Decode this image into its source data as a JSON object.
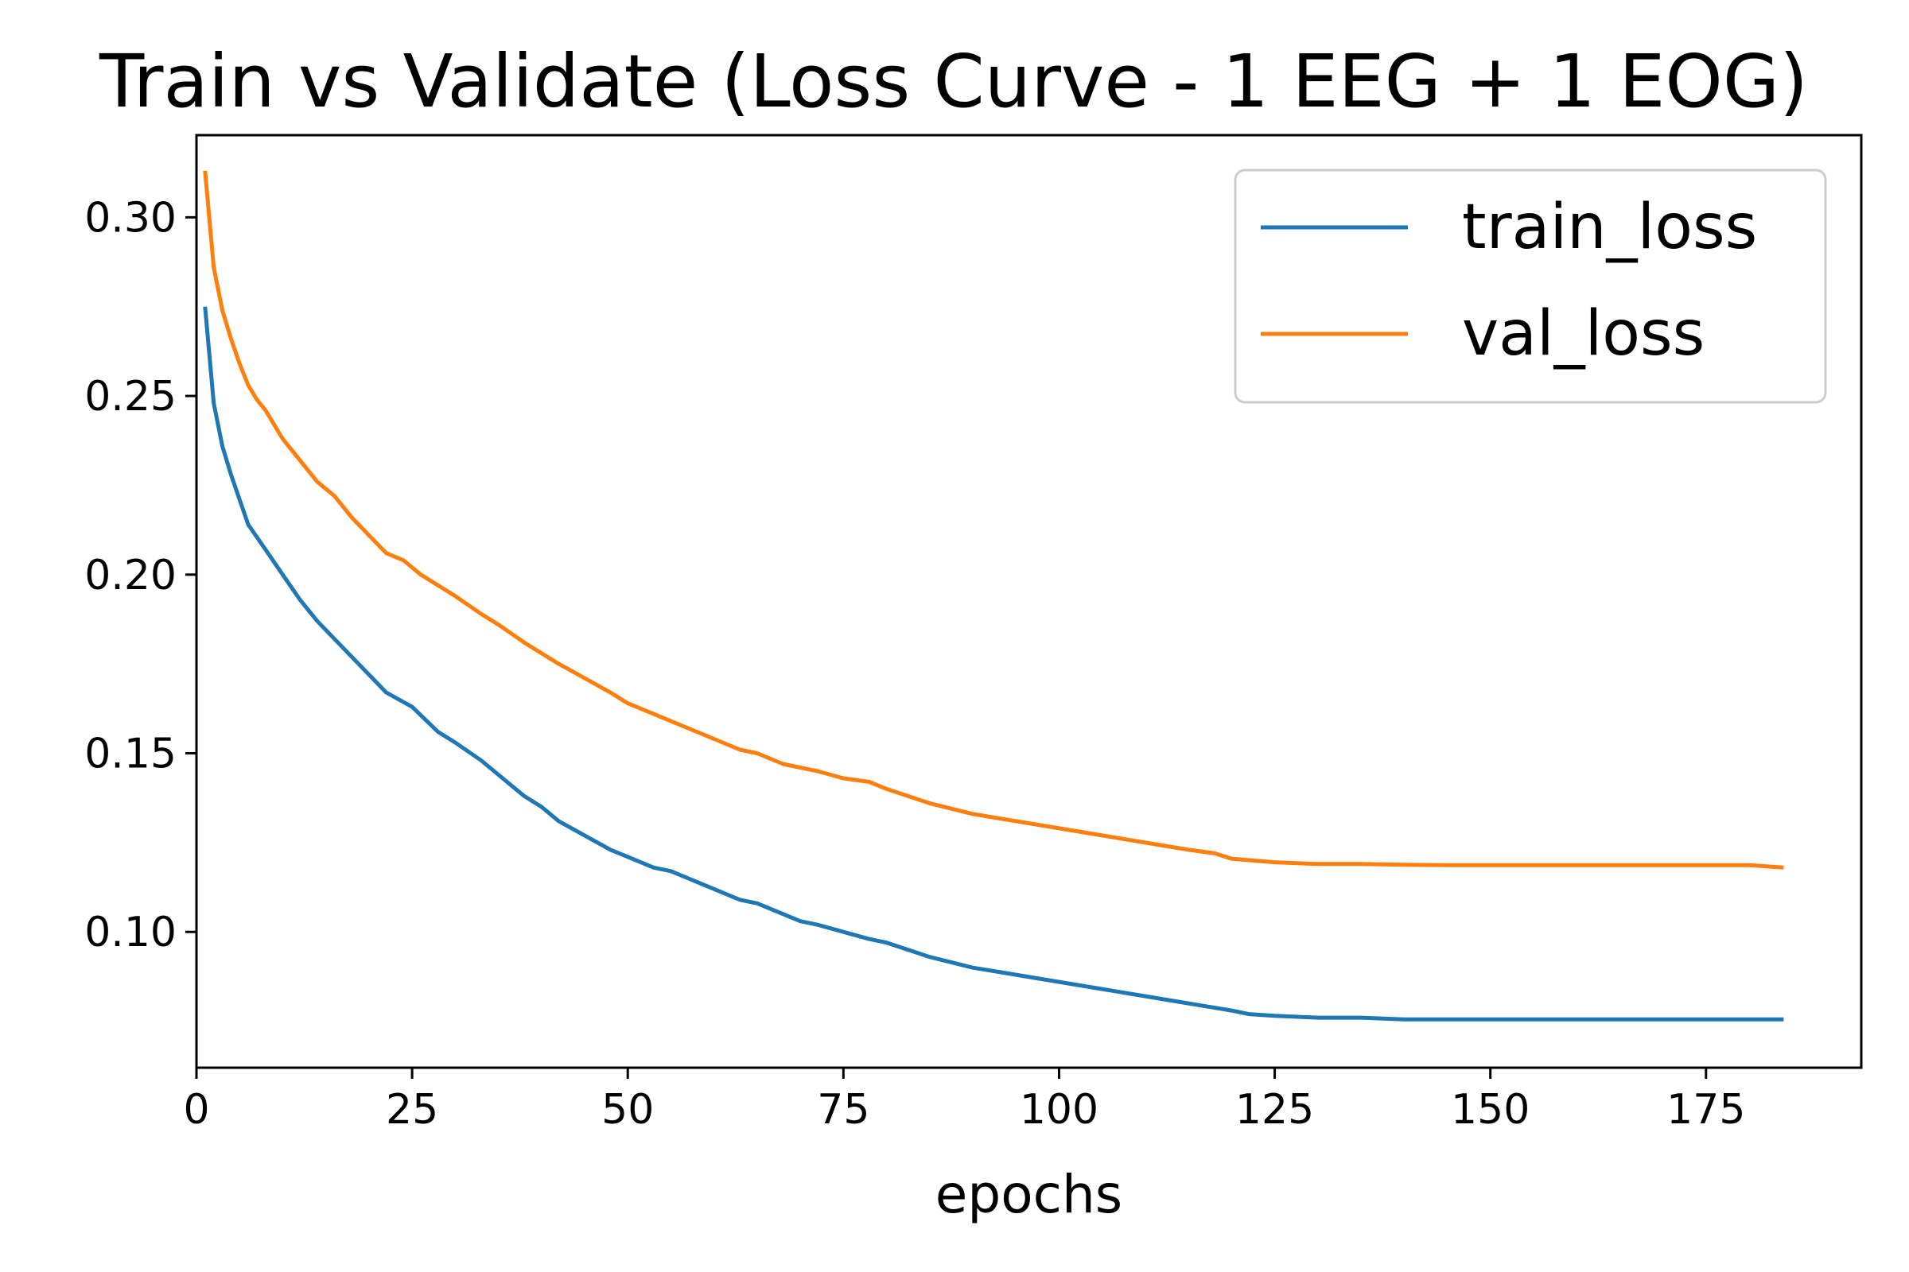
{
  "chart_data": {
    "type": "line",
    "title": "Train vs Validate (Loss Curve - 1 EEG + 1 EOG)",
    "xlabel": "epochs",
    "ylabel": "",
    "xlim": [
      0,
      193
    ],
    "ylim": [
      0.062,
      0.323
    ],
    "xticks": [
      0,
      25,
      50,
      75,
      100,
      125,
      150,
      175
    ],
    "xtick_labels": [
      "0",
      "25",
      "50",
      "75",
      "100",
      "125",
      "150",
      "175"
    ],
    "yticks": [
      0.1,
      0.15,
      0.2,
      0.25,
      0.3
    ],
    "ytick_labels": [
      "0.10",
      "0.15",
      "0.20",
      "0.25",
      "0.30"
    ],
    "grid": false,
    "legend": {
      "position": "top-right",
      "entries": [
        "train_loss",
        "val_loss"
      ]
    },
    "series": [
      {
        "name": "train_loss",
        "color": "#1f77b4",
        "x": [
          1,
          2,
          3,
          4,
          5,
          6,
          8,
          10,
          12,
          14,
          16,
          18,
          20,
          22,
          25,
          28,
          30,
          33,
          35,
          38,
          40,
          42,
          45,
          48,
          50,
          53,
          55,
          58,
          60,
          63,
          65,
          68,
          70,
          72,
          75,
          78,
          80,
          85,
          90,
          95,
          100,
          105,
          110,
          115,
          120,
          122,
          125,
          130,
          135,
          140,
          145,
          150,
          155,
          160,
          165,
          170,
          175,
          180,
          184
        ],
        "y": [
          0.275,
          0.248,
          0.236,
          0.228,
          0.221,
          0.214,
          0.207,
          0.2,
          0.193,
          0.187,
          0.182,
          0.177,
          0.172,
          0.167,
          0.163,
          0.156,
          0.153,
          0.148,
          0.144,
          0.138,
          0.135,
          0.131,
          0.127,
          0.123,
          0.121,
          0.118,
          0.117,
          0.114,
          0.112,
          0.109,
          0.108,
          0.105,
          0.103,
          0.102,
          0.1,
          0.098,
          0.097,
          0.093,
          0.09,
          0.088,
          0.086,
          0.084,
          0.082,
          0.08,
          0.078,
          0.077,
          0.0765,
          0.076,
          0.076,
          0.0755,
          0.0755,
          0.0755,
          0.0755,
          0.0755,
          0.0755,
          0.0755,
          0.0755,
          0.0755,
          0.0755
        ]
      },
      {
        "name": "val_loss",
        "color": "#ff7f0e",
        "x": [
          1,
          2,
          3,
          4,
          5,
          6,
          7,
          8,
          10,
          12,
          14,
          16,
          18,
          20,
          22,
          24,
          26,
          28,
          30,
          33,
          35,
          38,
          40,
          42,
          45,
          48,
          50,
          53,
          55,
          58,
          60,
          63,
          65,
          68,
          70,
          72,
          75,
          78,
          80,
          85,
          90,
          95,
          100,
          105,
          110,
          115,
          118,
          120,
          125,
          130,
          135,
          140,
          145,
          150,
          155,
          160,
          165,
          170,
          175,
          180,
          184
        ],
        "y": [
          0.313,
          0.286,
          0.274,
          0.266,
          0.259,
          0.253,
          0.249,
          0.246,
          0.238,
          0.232,
          0.226,
          0.222,
          0.216,
          0.211,
          0.206,
          0.204,
          0.2,
          0.197,
          0.194,
          0.189,
          0.186,
          0.181,
          0.178,
          0.175,
          0.171,
          0.167,
          0.164,
          0.161,
          0.159,
          0.156,
          0.154,
          0.151,
          0.15,
          0.147,
          0.146,
          0.145,
          0.143,
          0.142,
          0.14,
          0.136,
          0.133,
          0.131,
          0.129,
          0.127,
          0.125,
          0.123,
          0.122,
          0.1205,
          0.1195,
          0.119,
          0.119,
          0.1188,
          0.1187,
          0.1187,
          0.1187,
          0.1187,
          0.1187,
          0.1187,
          0.1187,
          0.1187,
          0.118
        ]
      }
    ]
  }
}
